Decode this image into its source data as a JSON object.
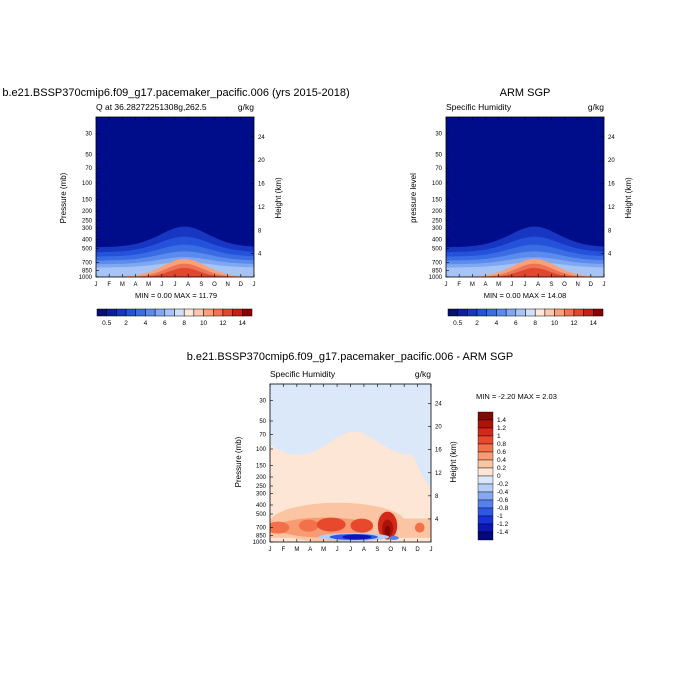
{
  "colors": {
    "navy": "#000d8a",
    "scale_top": [
      "#08106e",
      "#0d1d9f",
      "#1736c2",
      "#2552da",
      "#3a6ce4",
      "#5b8bec",
      "#80a8f1",
      "#a7c4f6",
      "#d0e0fa",
      "#fde8dc",
      "#fbc8ac",
      "#f7a07a",
      "#f07255",
      "#e4452f",
      "#c81e14",
      "#8b0000"
    ],
    "scale_diff": [
      "#04087a",
      "#0b16b4",
      "#1631d6",
      "#2f57e6",
      "#5580ee",
      "#86a8f3",
      "#b6cdf7",
      "#dbe8fa",
      "#fde6d6",
      "#fbc4a3",
      "#f79b73",
      "#f2704a",
      "#e8492d",
      "#d42819",
      "#ad1309",
      "#820a04"
    ]
  },
  "chart_data": [
    {
      "type": "heatmap",
      "title": "b.e21.BSSP370cmip6.f09_g17.pacemaker_pacific.006 (yrs 2015-2018)",
      "subtitle_left": "Q at 36.28272251308g,262.5",
      "subtitle_right": "g/kg",
      "ylabel": "Pressure (mb)",
      "ylabel_right": "Height (km)",
      "x_categories": [
        "J",
        "F",
        "M",
        "A",
        "M",
        "J",
        "J",
        "A",
        "S",
        "O",
        "N",
        "D",
        "J"
      ],
      "y_ticks": [
        30,
        50,
        70,
        100,
        150,
        200,
        250,
        300,
        400,
        500,
        700,
        850,
        1000
      ],
      "y_ticks_right": [
        24,
        20,
        16,
        12,
        8,
        4
      ],
      "y_log_scale": true,
      "ylim": [
        1000,
        20
      ],
      "min": 0.0,
      "max": 11.79,
      "stats_text": "MIN =   0.00 MAX =  11.79",
      "colorbar_labels": [
        "0.5",
        "2",
        "4",
        "6",
        "8",
        "10",
        "12",
        "14"
      ],
      "peak_month_index": 6.7,
      "peak_value": 11.79
    },
    {
      "type": "heatmap",
      "title": "ARM SGP",
      "subtitle_left": "Specific Humidity",
      "subtitle_right": "g/kg",
      "ylabel": "pressure level",
      "ylabel_right": "Height (km)",
      "x_categories": [
        "J",
        "F",
        "M",
        "A",
        "M",
        "J",
        "J",
        "A",
        "S",
        "O",
        "N",
        "D",
        "J"
      ],
      "y_ticks": [
        30,
        50,
        70,
        100,
        150,
        200,
        250,
        300,
        400,
        500,
        700,
        850,
        1000
      ],
      "y_ticks_right": [
        24,
        20,
        16,
        12,
        8,
        4
      ],
      "y_log_scale": true,
      "ylim": [
        1000,
        20
      ],
      "min": 0.0,
      "max": 14.08,
      "stats_text": "MIN =   0.00 MAX =  14.08",
      "colorbar_labels": [
        "0.5",
        "2",
        "4",
        "6",
        "8",
        "10",
        "12",
        "14"
      ],
      "peak_month_index": 6.7,
      "peak_value": 14.08
    },
    {
      "type": "heatmap",
      "title": "b.e21.BSSP370cmip6.f09_g17.pacemaker_pacific.006 - ARM SGP",
      "subtitle_left": "Specific Humidity",
      "subtitle_right": "g/kg",
      "ylabel": "Pressure (mb)",
      "ylabel_right": "Height (km)",
      "x_categories": [
        "J",
        "F",
        "M",
        "A",
        "M",
        "J",
        "J",
        "A",
        "S",
        "O",
        "N",
        "D",
        "J"
      ],
      "y_ticks": [
        30,
        50,
        70,
        100,
        150,
        200,
        250,
        300,
        400,
        500,
        700,
        850,
        1000
      ],
      "y_ticks_right": [
        24,
        20,
        16,
        12,
        8,
        4
      ],
      "y_log_scale": true,
      "ylim": [
        1000,
        20
      ],
      "min": -2.2,
      "max": 2.03,
      "stats_text": "MIN =  -2.20 MAX =   2.03",
      "colorbar_labels": [
        "1.4",
        "1.2",
        "1",
        "0.8",
        "0.6",
        "0.4",
        "0.2",
        "0",
        "-0.2",
        "-0.4",
        "-0.6",
        "-0.8",
        "-1",
        "-1.2",
        "-1.4"
      ]
    }
  ]
}
